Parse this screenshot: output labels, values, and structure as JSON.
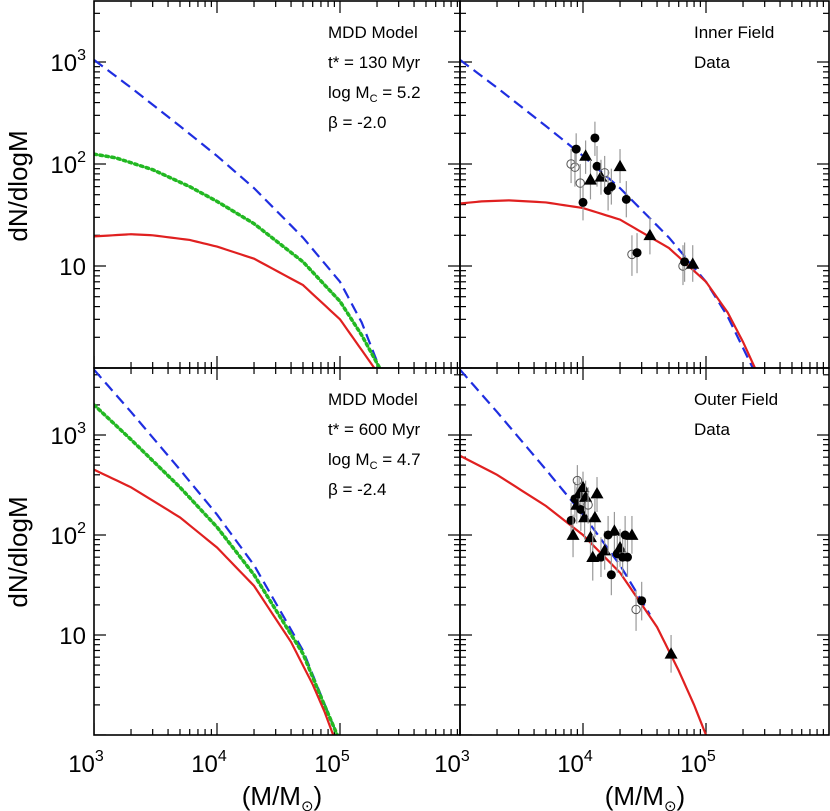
{
  "chart_data": {
    "type": "line",
    "xscale": "log",
    "yscale": "log",
    "xlim": [
      1000,
      800000
    ],
    "ylim": [
      1,
      5000
    ],
    "x_tick_labels": [
      {
        "value": 1000,
        "base": "10",
        "exp": "3"
      },
      {
        "value": 10000,
        "base": "10",
        "exp": "4"
      },
      {
        "value": 100000,
        "base": "10",
        "exp": "5"
      }
    ],
    "y_tick_labels": [
      {
        "value": 1000,
        "base": "10",
        "exp": "3"
      },
      {
        "value": 100,
        "base": "10",
        "exp": "2"
      },
      {
        "value": 10,
        "base": "10",
        "exp": ""
      }
    ],
    "xlabel": {
      "pre": "(M/M",
      "sub": "⊙",
      "post": ")"
    },
    "ylabel": "dN/dlogM",
    "colors": {
      "dashed": "#1f2ee0",
      "dotted": "#22b822",
      "solid": "#e02020",
      "marker": "#000000",
      "errorbar": "#999999"
    },
    "panels": [
      {
        "id": "top-left",
        "annotations": [
          "MDD Model",
          "t* = 130 Myr",
          "log M_C = 5.2",
          "β = -2.0"
        ],
        "curves": [
          {
            "style": "dashed",
            "color": "#1f2ee0",
            "x": [
              1000,
              2000,
              5000,
              10000,
              20000,
              50000,
              100000,
              150000,
              210000
            ],
            "y": [
              1050,
              560,
              235,
              120,
              58,
              19,
              7,
              2.8,
              1
            ]
          },
          {
            "style": "dotted",
            "color": "#22b822",
            "x": [
              1000,
              1500,
              3000,
              6000,
              10000,
              20000,
              50000,
              100000,
              150000,
              210000
            ],
            "y": [
              125,
              115,
              88,
              60,
              43,
              26,
              11,
              4.5,
              2.1,
              1
            ]
          },
          {
            "style": "solid",
            "color": "#e02020",
            "x": [
              1000,
              2000,
              3000,
              6000,
              10000,
              20000,
              50000,
              100000,
              150000,
              190000
            ],
            "y": [
              19.5,
              20.5,
              20,
              18,
              15.5,
              11.8,
              6.5,
              3,
              1.5,
              1
            ]
          }
        ],
        "points": []
      },
      {
        "id": "top-right",
        "annotations": [
          "Inner Field",
          "Data"
        ],
        "curves": [
          {
            "style": "dashed",
            "color": "#1f2ee0",
            "x": [
              1000,
              2000,
              5000,
              10000,
              20000,
              50000,
              100000,
              150000,
              240000
            ],
            "y": [
              1050,
              560,
              235,
              120,
              58,
              19,
              7,
              3.2,
              1
            ]
          },
          {
            "style": "solid",
            "color": "#e02020",
            "x": [
              1000,
              1500,
              2500,
              5000,
              10000,
              20000,
              50000,
              100000,
              150000,
              200000,
              250000
            ],
            "y": [
              41,
              43,
              44,
              42,
              37,
              28.5,
              15,
              7,
              3.5,
              1.8,
              1
            ]
          }
        ],
        "points": [
          {
            "x": 8000,
            "y": 100,
            "marker": "open-circle",
            "err": [
              65,
              140
            ]
          },
          {
            "x": 8600,
            "y": 93,
            "marker": "open-circle",
            "err": [
              60,
              135
            ]
          },
          {
            "x": 8800,
            "y": 140,
            "marker": "filled-circle",
            "err": [
              95,
              200
            ]
          },
          {
            "x": 9500,
            "y": 65,
            "marker": "open-circle",
            "err": [
              40,
              100
            ]
          },
          {
            "x": 10000,
            "y": 42,
            "marker": "filled-circle",
            "err": [
              28,
              62
            ]
          },
          {
            "x": 10500,
            "y": 120,
            "marker": "triangle",
            "err": [
              80,
              170
            ]
          },
          {
            "x": 11500,
            "y": 70,
            "marker": "triangle",
            "err": [
              45,
              110
            ]
          },
          {
            "x": 12500,
            "y": 180,
            "marker": "filled-circle",
            "err": [
              120,
              260
            ]
          },
          {
            "x": 13000,
            "y": 95,
            "marker": "filled-circle",
            "err": [
              60,
              150
            ]
          },
          {
            "x": 14000,
            "y": 75,
            "marker": "triangle",
            "err": [
              50,
              110
            ]
          },
          {
            "x": 15000,
            "y": 82,
            "marker": "open-circle",
            "err": [
              55,
              120
            ]
          },
          {
            "x": 16000,
            "y": 55,
            "marker": "filled-circle",
            "err": [
              35,
              85
            ]
          },
          {
            "x": 17000,
            "y": 60,
            "marker": "filled-circle",
            "err": [
              40,
              90
            ]
          },
          {
            "x": 20000,
            "y": 95,
            "marker": "triangle",
            "err": [
              65,
              140
            ]
          },
          {
            "x": 22500,
            "y": 45,
            "marker": "filled-circle",
            "err": [
              30,
              68
            ]
          },
          {
            "x": 25000,
            "y": 13,
            "marker": "open-circle",
            "err": [
              8,
              20
            ]
          },
          {
            "x": 27500,
            "y": 13.5,
            "marker": "filled-circle",
            "err": [
              8.5,
              21
            ]
          },
          {
            "x": 35000,
            "y": 20,
            "marker": "triangle",
            "err": [
              13,
              30
            ]
          },
          {
            "x": 65000,
            "y": 10,
            "marker": "open-circle",
            "err": [
              6.5,
              16
            ]
          },
          {
            "x": 67000,
            "y": 11,
            "marker": "filled-circle",
            "err": [
              7,
              17
            ]
          },
          {
            "x": 78000,
            "y": 10.5,
            "marker": "triangle",
            "err": [
              7,
              16
            ]
          }
        ]
      },
      {
        "id": "bottom-left",
        "annotations": [
          "MDD Model",
          "t* = 600 Myr",
          "log M_C = 4.7",
          "β = -2.4"
        ],
        "curves": [
          {
            "style": "dashed",
            "color": "#1f2ee0",
            "x": [
              1000,
              2000,
              5000,
              10000,
              20000,
              50000,
              70000,
              95000
            ],
            "y": [
              4500,
              1700,
              450,
              160,
              50,
              7,
              2.5,
              1
            ]
          },
          {
            "style": "dotted",
            "color": "#22b822",
            "x": [
              1000,
              2000,
              5000,
              10000,
              20000,
              50000,
              70000,
              95000
            ],
            "y": [
              2000,
              900,
              300,
              120,
              40,
              6.5,
              2.4,
              1
            ]
          },
          {
            "style": "solid",
            "color": "#e02020",
            "x": [
              1000,
              2000,
              5000,
              10000,
              20000,
              40000,
              60000,
              75000,
              88000
            ],
            "y": [
              450,
              300,
              150,
              75,
              31,
              8.5,
              3.2,
              1.7,
              1
            ]
          }
        ],
        "points": []
      },
      {
        "id": "bottom-right",
        "annotations": [
          "Outer Field",
          "Data"
        ],
        "curves": [
          {
            "style": "dashed",
            "color": "#1f2ee0",
            "x": [
              1000,
              2000,
              5000,
              10000,
              20000,
              35000
            ],
            "y": [
              4500,
              1700,
              450,
              160,
              50,
              16
            ]
          },
          {
            "style": "solid",
            "color": "#e02020",
            "x": [
              1000,
              2000,
              5000,
              10000,
              20000,
              40000,
              60000,
              80000,
              100000
            ],
            "y": [
              620,
              400,
              195,
              100,
              42,
              12,
              4.4,
              2,
              1
            ]
          }
        ],
        "points": [
          {
            "x": 8000,
            "y": 140,
            "marker": "filled-circle",
            "err": [
              95,
              210
            ]
          },
          {
            "x": 8300,
            "y": 100,
            "marker": "triangle",
            "err": [
              60,
              160
            ]
          },
          {
            "x": 8600,
            "y": 230,
            "marker": "filled-circle",
            "err": [
              150,
              340
            ]
          },
          {
            "x": 8900,
            "y": 200,
            "marker": "triangle",
            "err": [
              130,
              300
            ]
          },
          {
            "x": 9000,
            "y": 350,
            "marker": "open-circle",
            "err": [
              240,
              500
            ]
          },
          {
            "x": 9300,
            "y": 260,
            "marker": "triangle",
            "err": [
              170,
              380
            ]
          },
          {
            "x": 9600,
            "y": 180,
            "marker": "filled-circle",
            "err": [
              110,
              280
            ]
          },
          {
            "x": 10000,
            "y": 300,
            "marker": "triangle",
            "err": [
              200,
              430
            ]
          },
          {
            "x": 10300,
            "y": 150,
            "marker": "triangle",
            "err": [
              90,
              240
            ]
          },
          {
            "x": 10500,
            "y": 240,
            "marker": "triangle",
            "err": [
              160,
              350
            ]
          },
          {
            "x": 11000,
            "y": 200,
            "marker": "open-circle",
            "err": [
              130,
              300
            ]
          },
          {
            "x": 11500,
            "y": 95,
            "marker": "triangle",
            "err": [
              60,
              150
            ]
          },
          {
            "x": 12000,
            "y": 60,
            "marker": "triangle",
            "err": [
              35,
              100
            ]
          },
          {
            "x": 12500,
            "y": 150,
            "marker": "triangle",
            "err": [
              95,
              230
            ]
          },
          {
            "x": 13000,
            "y": 260,
            "marker": "triangle",
            "err": [
              170,
              380
            ]
          },
          {
            "x": 14000,
            "y": 60,
            "marker": "filled-circle",
            "err": [
              38,
              95
            ]
          },
          {
            "x": 15000,
            "y": 70,
            "marker": "triangle",
            "err": [
              45,
              110
            ]
          },
          {
            "x": 16000,
            "y": 100,
            "marker": "filled-circle",
            "err": [
              65,
              155
            ]
          },
          {
            "x": 17000,
            "y": 40,
            "marker": "filled-circle",
            "err": [
              25,
              65
            ]
          },
          {
            "x": 18000,
            "y": 110,
            "marker": "triangle",
            "err": [
              70,
              170
            ]
          },
          {
            "x": 19000,
            "y": 65,
            "marker": "filled-circle",
            "err": [
              42,
              100
            ]
          },
          {
            "x": 20000,
            "y": 75,
            "marker": "triangle",
            "err": [
              48,
              115
            ]
          },
          {
            "x": 21000,
            "y": 60,
            "marker": "filled-circle",
            "err": [
              38,
              95
            ]
          },
          {
            "x": 22000,
            "y": 100,
            "marker": "filled-circle",
            "err": [
              65,
              155
            ]
          },
          {
            "x": 23000,
            "y": 60,
            "marker": "filled-circle",
            "err": [
              38,
              95
            ]
          },
          {
            "x": 25000,
            "y": 100,
            "marker": "triangle",
            "err": [
              65,
              155
            ]
          },
          {
            "x": 27000,
            "y": 18,
            "marker": "open-circle",
            "err": [
              11,
              28
            ]
          },
          {
            "x": 30000,
            "y": 22,
            "marker": "filled-circle",
            "err": [
              14,
              34
            ]
          },
          {
            "x": 52000,
            "y": 6.5,
            "marker": "triangle",
            "err": [
              4.2,
              10
            ]
          }
        ]
      }
    ]
  }
}
